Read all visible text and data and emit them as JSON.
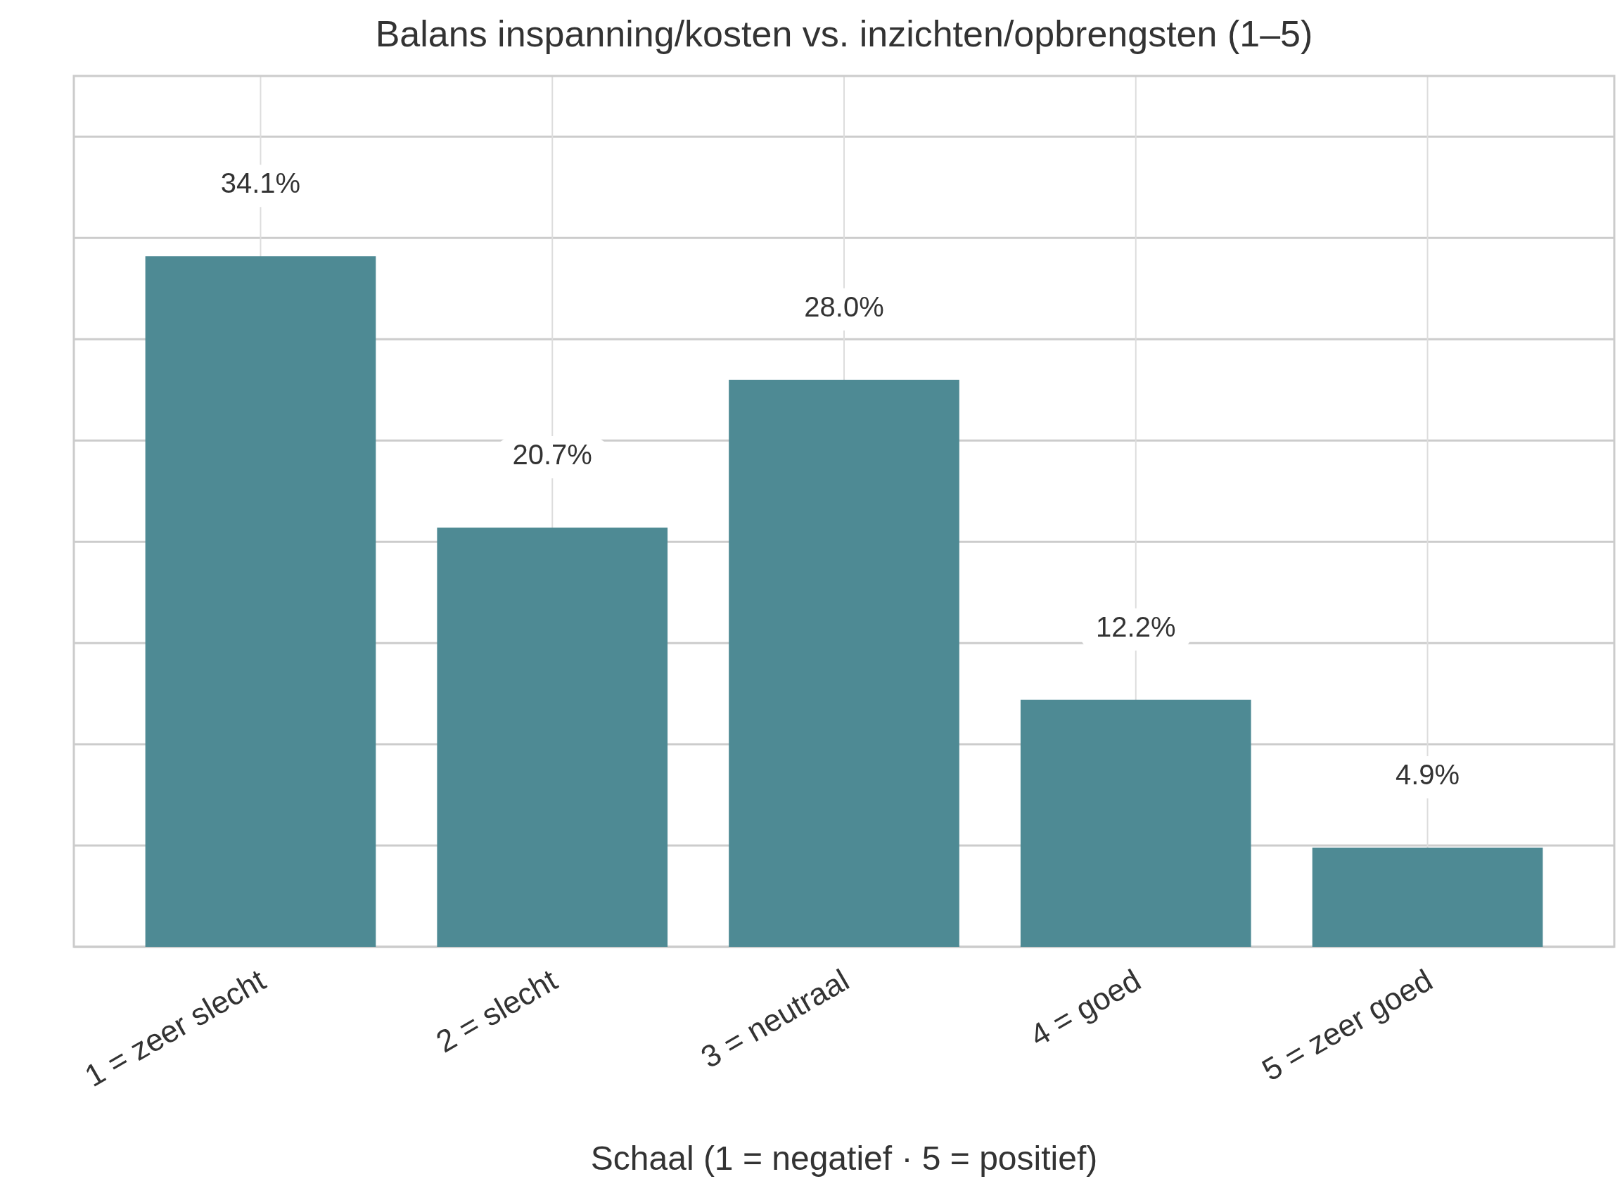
{
  "chart_data": {
    "type": "bar",
    "title": "Balans inspanning/kosten vs. inzichten/opbrengsten (1–5)",
    "xlabel": "Schaal (1 = negatief · 5 = positief)",
    "categories": [
      "1 = zeer slecht",
      "2 = slecht",
      "3 = neutraal",
      "4 = goed",
      "5 = zeer goed"
    ],
    "values": [
      34.1,
      20.7,
      28.0,
      12.2,
      4.9
    ],
    "color": "#4e8a94",
    "value_labels": [
      "34.1%",
      "20.7%",
      "28.0%",
      "12.2%",
      "4.9%"
    ],
    "ylim": [
      0,
      43
    ],
    "yticks": [
      {
        "value": 0,
        "label": null
      },
      {
        "value": 5,
        "label": null
      },
      {
        "value": 10,
        "label": null
      },
      {
        "value": 15,
        "label": null
      },
      {
        "value": 20,
        "label": null
      },
      {
        "value": 25,
        "label": null
      },
      {
        "value": 30,
        "label": null
      },
      {
        "value": 35,
        "label": null
      },
      {
        "value": 40,
        "label": null
      }
    ],
    "tick_labels": "x",
    "grid": true
  }
}
